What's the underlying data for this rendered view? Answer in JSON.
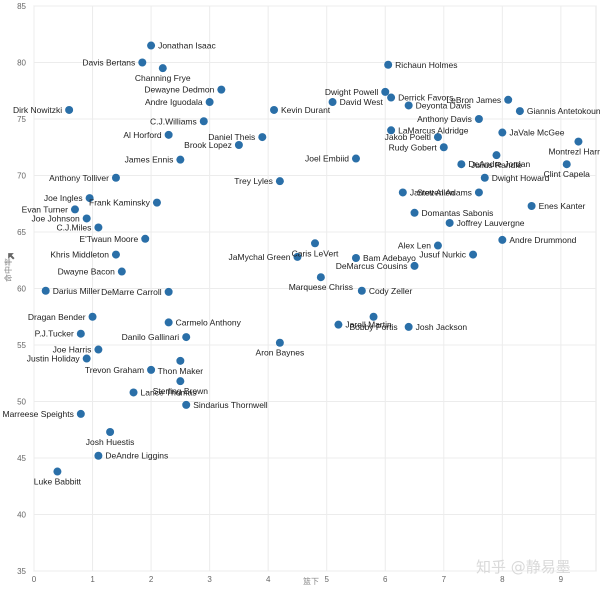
{
  "chart_data": {
    "type": "scatter",
    "xlabel": "篮下",
    "ylabel": "命中率",
    "xlim": [
      0,
      9.6
    ],
    "ylim": [
      35,
      85
    ],
    "xticks": [
      0,
      1,
      2,
      3,
      4,
      5,
      6,
      7,
      8,
      9
    ],
    "yticks": [
      35,
      40,
      45,
      50,
      55,
      60,
      65,
      70,
      75,
      80,
      85
    ],
    "grid": true,
    "color": "#2a6fa8",
    "watermark": "知乎 @静易墨",
    "labeled_points": [
      {
        "name": "Jonathan Isaac",
        "x": 2.0,
        "y": 81.5
      },
      {
        "name": "Davis Bertans",
        "x": 1.85,
        "y": 80.0
      },
      {
        "name": "Channing Frye",
        "x": 2.2,
        "y": 79.5
      },
      {
        "name": "Richaun Holmes",
        "x": 6.05,
        "y": 79.8
      },
      {
        "name": "Dewayne Dedmon",
        "x": 3.2,
        "y": 77.6
      },
      {
        "name": "Andre Iguodala",
        "x": 3.0,
        "y": 76.5
      },
      {
        "name": "Dwight Powell",
        "x": 6.0,
        "y": 77.4
      },
      {
        "name": "LeBron James",
        "x": 8.1,
        "y": 76.7
      },
      {
        "name": "Derrick Favors",
        "x": 6.1,
        "y": 76.9
      },
      {
        "name": "David West",
        "x": 5.1,
        "y": 76.5
      },
      {
        "name": "Deyonta Davis",
        "x": 6.4,
        "y": 76.2
      },
      {
        "name": "Giannis Antetokounmpo",
        "x": 8.3,
        "y": 75.7
      },
      {
        "name": "Dirk Nowitzki",
        "x": 0.6,
        "y": 75.8
      },
      {
        "name": "Kevin Durant",
        "x": 4.1,
        "y": 75.8
      },
      {
        "name": "C.J.Williams",
        "x": 2.9,
        "y": 74.8
      },
      {
        "name": "Anthony Davis",
        "x": 7.6,
        "y": 75.0
      },
      {
        "name": "LaMarcus Aldridge",
        "x": 6.1,
        "y": 74.0
      },
      {
        "name": "JaVale McGee",
        "x": 8.0,
        "y": 73.8
      },
      {
        "name": "Al Horford",
        "x": 2.3,
        "y": 73.6
      },
      {
        "name": "Jakob Poeltl",
        "x": 6.9,
        "y": 73.4
      },
      {
        "name": "Daniel Theis",
        "x": 3.9,
        "y": 73.4
      },
      {
        "name": "Brook Lopez",
        "x": 3.5,
        "y": 72.7
      },
      {
        "name": "Montrezl Harrell",
        "x": 9.3,
        "y": 73.0
      },
      {
        "name": "Rudy Gobert",
        "x": 7.0,
        "y": 72.5
      },
      {
        "name": "Joel Embiid",
        "x": 5.5,
        "y": 71.5
      },
      {
        "name": "Julius Randle",
        "x": 7.9,
        "y": 71.8
      },
      {
        "name": "James Ennis",
        "x": 2.5,
        "y": 71.4
      },
      {
        "name": "DeAndre Jordan",
        "x": 7.3,
        "y": 71.0
      },
      {
        "name": "Clint Capela",
        "x": 9.1,
        "y": 71.0
      },
      {
        "name": "Anthony Tolliver",
        "x": 1.4,
        "y": 69.8
      },
      {
        "name": "Trey Lyles",
        "x": 4.2,
        "y": 69.5
      },
      {
        "name": "Dwight Howard",
        "x": 7.7,
        "y": 69.8
      },
      {
        "name": "Jarrett Allen",
        "x": 6.3,
        "y": 68.5
      },
      {
        "name": "Steven Adams",
        "x": 7.6,
        "y": 68.5
      },
      {
        "name": "Joe Ingles",
        "x": 0.95,
        "y": 68.0
      },
      {
        "name": "Frank Kaminsky",
        "x": 2.1,
        "y": 67.6
      },
      {
        "name": "Enes Kanter",
        "x": 8.5,
        "y": 67.3
      },
      {
        "name": "Evan Turner",
        "x": 0.7,
        "y": 67.0
      },
      {
        "name": "Domantas Sabonis",
        "x": 6.5,
        "y": 66.7
      },
      {
        "name": "Joe Johnson",
        "x": 0.9,
        "y": 66.2
      },
      {
        "name": "Joffrey Lauvergne",
        "x": 7.1,
        "y": 65.8
      },
      {
        "name": "C.J.Miles",
        "x": 1.1,
        "y": 65.4
      },
      {
        "name": "E'Twaun Moore",
        "x": 1.9,
        "y": 64.4
      },
      {
        "name": "Andre Drummond",
        "x": 8.0,
        "y": 64.3
      },
      {
        "name": "Caris LeVert",
        "x": 4.8,
        "y": 64.0
      },
      {
        "name": "Alex Len",
        "x": 6.9,
        "y": 63.8
      },
      {
        "name": "Khris Middleton",
        "x": 1.4,
        "y": 63.0
      },
      {
        "name": "Jusuf Nurkic",
        "x": 7.5,
        "y": 63.0
      },
      {
        "name": "JaMychal Green",
        "x": 4.5,
        "y": 62.8
      },
      {
        "name": "Bam Adebayo",
        "x": 5.5,
        "y": 62.7
      },
      {
        "name": "DeMarcus Cousins",
        "x": 6.5,
        "y": 62.0
      },
      {
        "name": "Dwayne Bacon",
        "x": 1.5,
        "y": 61.5
      },
      {
        "name": "Marquese Chriss",
        "x": 4.9,
        "y": 61.0
      },
      {
        "name": "Darius Miller",
        "x": 0.2,
        "y": 59.8
      },
      {
        "name": "DeMarre Carroll",
        "x": 2.3,
        "y": 59.7
      },
      {
        "name": "Cody Zeller",
        "x": 5.6,
        "y": 59.8
      },
      {
        "name": "Bobby Portis",
        "x": 5.8,
        "y": 57.5
      },
      {
        "name": "Dragan Bender",
        "x": 1.0,
        "y": 57.5
      },
      {
        "name": "Carmelo Anthony",
        "x": 2.3,
        "y": 57.0
      },
      {
        "name": "Jarell Martin",
        "x": 5.2,
        "y": 56.8
      },
      {
        "name": "Josh Jackson",
        "x": 6.4,
        "y": 56.6
      },
      {
        "name": "P.J.Tucker",
        "x": 0.8,
        "y": 56.0
      },
      {
        "name": "Danilo Gallinari",
        "x": 2.6,
        "y": 55.7
      },
      {
        "name": "Aron Baynes",
        "x": 4.2,
        "y": 55.2
      },
      {
        "name": "Joe Harris",
        "x": 1.1,
        "y": 54.6
      },
      {
        "name": "Justin Holiday",
        "x": 0.9,
        "y": 53.8
      },
      {
        "name": "Thon Maker",
        "x": 2.5,
        "y": 53.6
      },
      {
        "name": "Trevon Graham",
        "x": 2.0,
        "y": 52.8
      },
      {
        "name": "Sterling Brown",
        "x": 2.5,
        "y": 51.8
      },
      {
        "name": "Lance Thomas",
        "x": 1.7,
        "y": 50.8
      },
      {
        "name": "Sindarius Thornwell",
        "x": 2.6,
        "y": 49.7
      },
      {
        "name": "Marreese Speights",
        "x": 0.8,
        "y": 48.9
      },
      {
        "name": "Josh Huestis",
        "x": 1.3,
        "y": 47.3
      },
      {
        "name": "DeAndre Liggins",
        "x": 1.1,
        "y": 45.2
      },
      {
        "name": "Luke Babbitt",
        "x": 0.4,
        "y": 43.8
      }
    ]
  }
}
